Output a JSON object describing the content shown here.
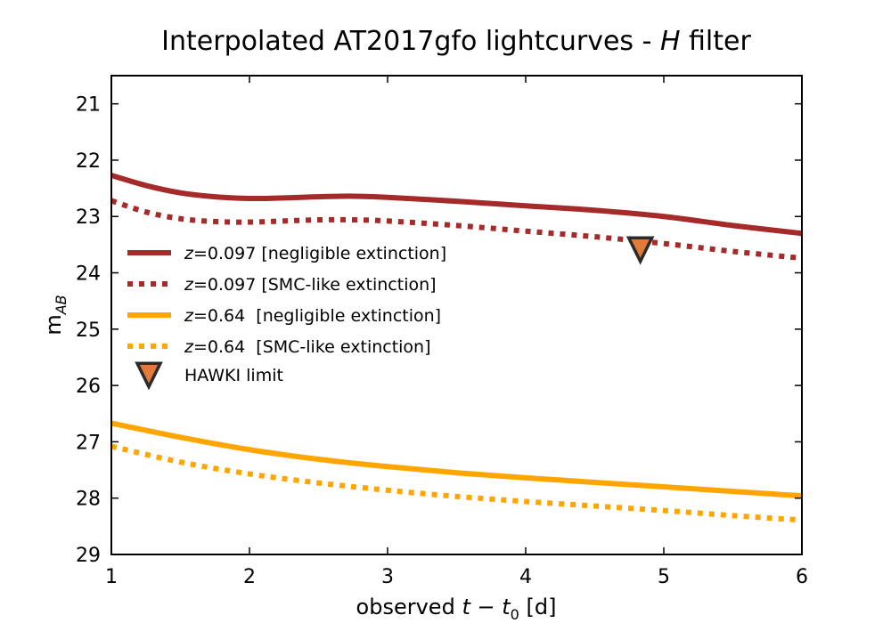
{
  "chart_data": {
    "type": "line",
    "title": {
      "prefix": "Interpolated AT2017gfo lightcurves - ",
      "filter": "H",
      "suffix": " filter"
    },
    "xlabel": {
      "prefix": "observed ",
      "t": "t",
      "minus": " − ",
      "t0": "t",
      "sub": "0",
      "suffix": " [d]"
    },
    "ylabel": {
      "main": "m",
      "sub": "AB"
    },
    "xlim": [
      1,
      6
    ],
    "ylim": [
      29,
      20.5
    ],
    "y_inverted": true,
    "x_ticks": [
      1,
      2,
      3,
      4,
      5,
      6
    ],
    "y_ticks": [
      21,
      22,
      23,
      24,
      25,
      26,
      27,
      28,
      29
    ],
    "legend_position": "upper-left",
    "series": [
      {
        "name": "z=0.097 [negligible extinction]",
        "legend_var": "z",
        "legend_rest": "=0.097 [negligible extinction]",
        "color": "#a52a2a",
        "style": "solid",
        "x": [
          1,
          1.25,
          1.5,
          1.75,
          2,
          2.25,
          2.5,
          2.75,
          3,
          3.5,
          4,
          4.5,
          5,
          5.5,
          6
        ],
        "y": [
          22.27,
          22.45,
          22.58,
          22.65,
          22.68,
          22.67,
          22.65,
          22.64,
          22.66,
          22.73,
          22.81,
          22.89,
          23.0,
          23.16,
          23.3
        ]
      },
      {
        "name": "z=0.097 [SMC-like extinction]",
        "legend_var": "z",
        "legend_rest": "=0.097 [SMC-like extinction]",
        "color": "#a52a2a",
        "style": "dotted",
        "x": [
          1,
          1.25,
          1.5,
          1.75,
          2,
          2.25,
          2.5,
          2.75,
          3,
          3.5,
          4,
          4.5,
          5,
          5.5,
          6
        ],
        "y": [
          22.72,
          22.92,
          23.04,
          23.09,
          23.1,
          23.08,
          23.06,
          23.06,
          23.08,
          23.16,
          23.26,
          23.36,
          23.48,
          23.62,
          23.74
        ]
      },
      {
        "name": "z=0.64  [negligible extinction]",
        "legend_var": "z",
        "legend_rest": "=0.64  [negligible extinction]",
        "color": "#ffa500",
        "style": "solid",
        "x": [
          1,
          1.5,
          2,
          2.5,
          3,
          3.5,
          4,
          4.5,
          5,
          5.5,
          6
        ],
        "y": [
          26.67,
          26.92,
          27.14,
          27.31,
          27.44,
          27.55,
          27.64,
          27.72,
          27.8,
          27.88,
          27.96
        ]
      },
      {
        "name": "z=0.64  [SMC-like extinction]",
        "legend_var": "z",
        "legend_rest": "=0.64  [SMC-like extinction]",
        "color": "#ffa500",
        "style": "dotted",
        "x": [
          1,
          1.5,
          2,
          2.5,
          3,
          3.5,
          4,
          4.5,
          5,
          5.5,
          6
        ],
        "y": [
          27.08,
          27.36,
          27.57,
          27.73,
          27.86,
          27.97,
          28.06,
          28.14,
          28.22,
          28.31,
          28.39
        ]
      }
    ],
    "markers": [
      {
        "name": "HAWKI limit",
        "x": 4.83,
        "y": 23.55,
        "shape": "triangle-down",
        "fill": "#e07b39",
        "edge": "#2b2b2b"
      }
    ]
  }
}
